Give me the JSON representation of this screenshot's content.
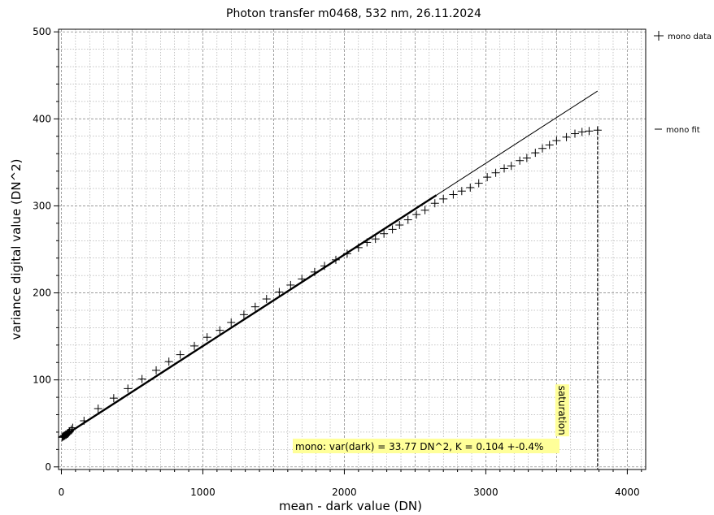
{
  "chart_data": {
    "type": "scatter",
    "title": "Photon transfer m0468,  532 nm, 26.11.2024",
    "xlabel": "mean - dark value (DN)",
    "ylabel": "variance digital value (DN^2)",
    "xlim": [
      -20,
      4130
    ],
    "ylim": [
      -3,
      503
    ],
    "xticks": [
      0,
      1000,
      2000,
      3000,
      4000
    ],
    "yticks": [
      0,
      100,
      200,
      300,
      400,
      500
    ],
    "grid": true,
    "legend_position": "right",
    "series": [
      {
        "name": "mono data",
        "marker": "plus",
        "points": [
          [
            5,
            34
          ],
          [
            10,
            35
          ],
          [
            15,
            35
          ],
          [
            20,
            36
          ],
          [
            25,
            36
          ],
          [
            30,
            37
          ],
          [
            35,
            37
          ],
          [
            40,
            38
          ],
          [
            45,
            38
          ],
          [
            50,
            39
          ],
          [
            55,
            40
          ],
          [
            60,
            41
          ],
          [
            70,
            43
          ],
          [
            80,
            45
          ],
          [
            160,
            53
          ],
          [
            260,
            67
          ],
          [
            370,
            79
          ],
          [
            470,
            90
          ],
          [
            570,
            101
          ],
          [
            670,
            111
          ],
          [
            760,
            121
          ],
          [
            840,
            129
          ],
          [
            940,
            139
          ],
          [
            1030,
            149
          ],
          [
            1120,
            157
          ],
          [
            1200,
            166
          ],
          [
            1290,
            175
          ],
          [
            1370,
            184
          ],
          [
            1450,
            193
          ],
          [
            1540,
            201
          ],
          [
            1620,
            209
          ],
          [
            1700,
            216
          ],
          [
            1790,
            224
          ],
          [
            1860,
            231
          ],
          [
            1940,
            238
          ],
          [
            2020,
            245
          ],
          [
            2100,
            252
          ],
          [
            2160,
            258
          ],
          [
            2220,
            262
          ],
          [
            2280,
            268
          ],
          [
            2340,
            273
          ],
          [
            2390,
            278
          ],
          [
            2450,
            284
          ],
          [
            2510,
            290
          ],
          [
            2570,
            295
          ],
          [
            2640,
            303
          ],
          [
            2700,
            308
          ],
          [
            2770,
            313
          ],
          [
            2830,
            317
          ],
          [
            2890,
            321
          ],
          [
            2950,
            326
          ],
          [
            3010,
            333
          ],
          [
            3070,
            338
          ],
          [
            3130,
            343
          ],
          [
            3180,
            346
          ],
          [
            3240,
            352
          ],
          [
            3290,
            355
          ],
          [
            3350,
            361
          ],
          [
            3400,
            366
          ],
          [
            3450,
            370
          ],
          [
            3500,
            375
          ],
          [
            3570,
            379
          ],
          [
            3630,
            383
          ],
          [
            3680,
            385
          ],
          [
            3730,
            386
          ],
          [
            3790,
            387
          ]
        ]
      },
      {
        "name": "mono fit",
        "type": "line",
        "points": [
          [
            0,
            33.77
          ],
          [
            3790,
            432
          ]
        ]
      }
    ],
    "fit_thick_end_x": 2650,
    "saturation_x": 3790,
    "annotations": {
      "saturation": "saturation",
      "fit_text": "mono: var(dark) = 33.77 DN^2, K = 0.104 +-0.4%"
    },
    "colors": {
      "data": "#000000",
      "fit": "#000000",
      "grid": "#8c8c8c",
      "highlight": "#ffff99"
    }
  }
}
